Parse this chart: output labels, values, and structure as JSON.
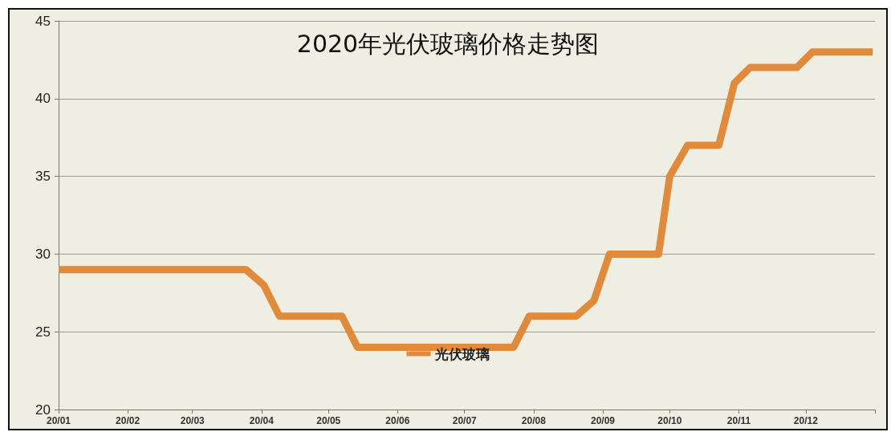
{
  "chart_data": {
    "type": "line",
    "title": "2020年光伏玻璃价格走势图",
    "x": [
      "2020-01-01",
      "2020-03-25",
      "2020-04-02",
      "2020-04-09",
      "2020-05-07",
      "2020-05-14",
      "2020-07-23",
      "2020-07-30",
      "2020-08-20",
      "2020-08-28",
      "2020-09-04",
      "2020-09-26",
      "2020-10-01",
      "2020-10-09",
      "2020-10-23",
      "2020-10-30",
      "2020-11-06",
      "2020-11-27",
      "2020-12-04",
      "2020-12-31"
    ],
    "series": [
      {
        "name": "光伏玻璃",
        "color": "#e08a3c",
        "values": [
          29,
          29,
          28,
          26,
          26,
          24,
          24,
          26,
          26,
          27,
          30,
          30,
          35,
          37,
          37,
          41,
          42,
          42,
          43,
          43
        ]
      }
    ],
    "xlim": [
      "2020-01-01",
      "2021-01-01"
    ],
    "xticks": [
      {
        "value": "2020-01-01",
        "label": "20/01"
      },
      {
        "value": "2020-02-01",
        "label": "20/02"
      },
      {
        "value": "2020-03-01",
        "label": "20/03"
      },
      {
        "value": "2020-04-01",
        "label": "20/04"
      },
      {
        "value": "2020-05-01",
        "label": "20/05"
      },
      {
        "value": "2020-06-01",
        "label": "20/06"
      },
      {
        "value": "2020-07-01",
        "label": "20/07"
      },
      {
        "value": "2020-08-01",
        "label": "20/08"
      },
      {
        "value": "2020-09-01",
        "label": "20/09"
      },
      {
        "value": "2020-10-01",
        "label": "20/10"
      },
      {
        "value": "2020-11-01",
        "label": "20/11"
      },
      {
        "value": "2020-12-01",
        "label": "20/12"
      },
      {
        "value": "2021-01-01",
        "label": null
      }
    ],
    "ylim": [
      20,
      45
    ],
    "yticks": [
      20,
      25,
      30,
      35,
      40,
      45
    ],
    "grid": "y",
    "legend": "bottom",
    "marker": "none",
    "line_style": "solid"
  }
}
